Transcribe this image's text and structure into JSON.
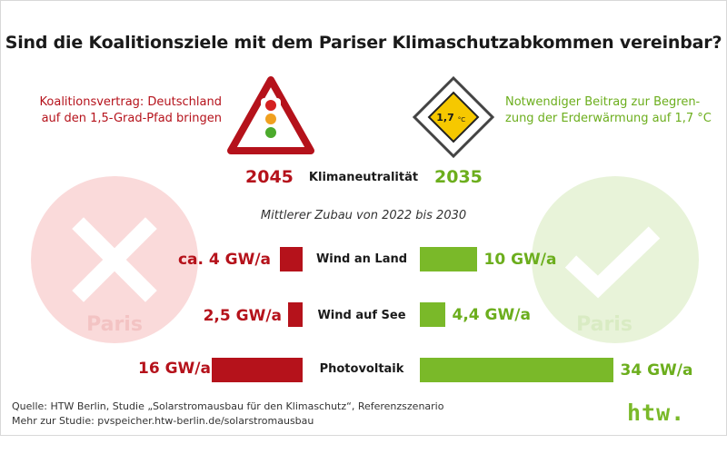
{
  "title": "Sind die Koalitionsziele mit dem Pariser Klimaschutzabkommen vereinbar?",
  "left": {
    "caption_line1": "Koalitionsvertrag: Deutschland",
    "caption_line2": "auf den 1,5-Grad-Pfad bringen",
    "year": "2045",
    "paris_label": "Paris",
    "symbol": "cross-icon",
    "sign": "traffic-light-sign-icon",
    "color": "#b5121b"
  },
  "right": {
    "caption_line1": "Notwendiger Beitrag zur Begren-",
    "caption_line2": "zung der Erderwärmung auf 1,7 °C",
    "year": "2035",
    "paris_label": "Paris",
    "symbol": "checkmark-icon",
    "sign": "priority-road-sign-icon",
    "sign_value": "1,7",
    "sign_unit": "°C",
    "color": "#7ab929"
  },
  "climate_neutrality_label": "Klimaneutralität",
  "chart_data": {
    "type": "bar",
    "subtitle": "Mittlerer Zubau von 2022 bis 2030",
    "categories": [
      "Wind an Land",
      "Wind auf See",
      "Photovoltaik"
    ],
    "unit": "GW/a",
    "series": [
      {
        "name": "Koalitionsvertrag",
        "values": [
          4,
          2.5,
          16
        ],
        "labels": [
          "ca. 4 GW/a",
          "2,5 GW/a",
          "16 GW/a"
        ],
        "color": "#b5121b"
      },
      {
        "name": "Notwendiger Beitrag 1,7 °C",
        "values": [
          10,
          4.4,
          34
        ],
        "labels": [
          "10 GW/a",
          "4,4 GW/a",
          "34 GW/a"
        ],
        "color": "#7ab929"
      }
    ]
  },
  "footer": {
    "source_line1": "Quelle: HTW Berlin, Studie „Solarstromausbau für den Klimaschutz“, Referenzszenario",
    "source_line2": "Mehr zur Studie: pvspeicher.htw-berlin.de/solarstromausbau",
    "logo": "htw."
  }
}
